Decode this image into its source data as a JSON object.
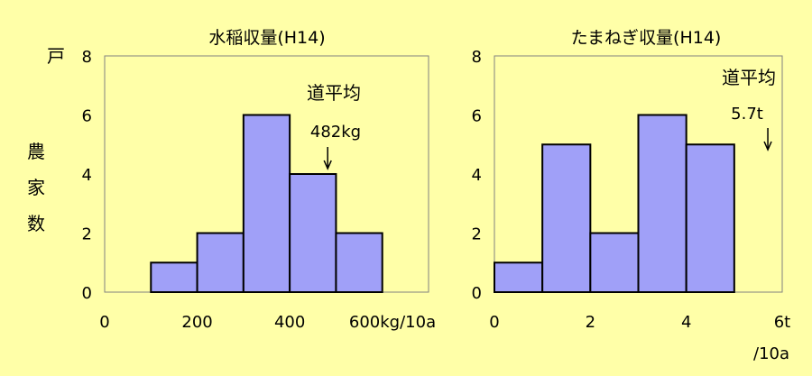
{
  "colors": {
    "background": "#FFFFA8",
    "bar": "#A0A0F8",
    "bar_stroke": "#000000"
  },
  "y_unit": "戸",
  "y_label_chars": [
    "農",
    "家",
    "数"
  ],
  "chart_data": [
    {
      "type": "bar",
      "title": "水稲収量(H14)",
      "xlabel": "600kg/10a",
      "ylabel": "農家数",
      "bins": [
        [
          100,
          200
        ],
        [
          200,
          300
        ],
        [
          300,
          400
        ],
        [
          400,
          500
        ],
        [
          500,
          600
        ]
      ],
      "values": [
        1,
        2,
        6,
        4,
        2
      ],
      "xlim": [
        0,
        700
      ],
      "ylim": [
        0,
        8
      ],
      "x_ticks": [
        "0",
        "200",
        "400"
      ],
      "y_ticks": [
        "0",
        "2",
        "4",
        "6",
        "8"
      ],
      "annotation": {
        "label": "道平均",
        "value": "482kg",
        "x": 482
      },
      "grid": false
    },
    {
      "type": "bar",
      "title": "たまねぎ収量(H14)",
      "xlabel": "/10a",
      "ylabel": "農家数",
      "bins": [
        [
          0,
          1
        ],
        [
          1,
          2
        ],
        [
          2,
          3
        ],
        [
          3,
          4
        ],
        [
          4,
          5
        ]
      ],
      "values": [
        1,
        5,
        2,
        6,
        5
      ],
      "xlim": [
        0,
        6
      ],
      "ylim": [
        0,
        8
      ],
      "x_ticks": [
        "0",
        "2",
        "4",
        "6t"
      ],
      "y_ticks": [
        "0",
        "2",
        "4",
        "6",
        "8"
      ],
      "annotation": {
        "label": "道平均",
        "value": "5.7t",
        "x": 5.7
      },
      "grid": false
    }
  ]
}
